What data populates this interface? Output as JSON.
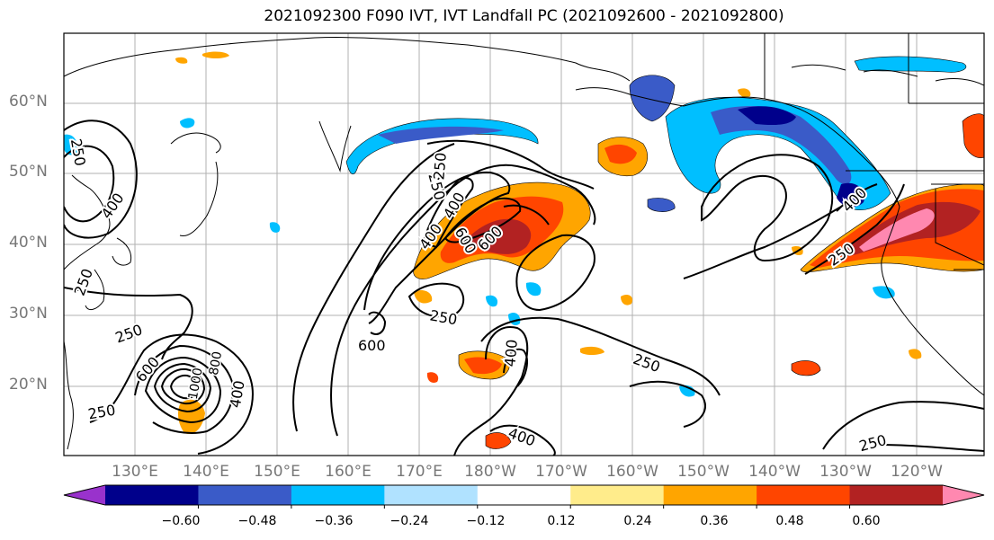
{
  "title": "2021092300 F090 IVT, IVT Landfall PC (2021092600 - 2021092800)",
  "lat_labels": [
    "60°N",
    "50°N",
    "40°N",
    "30°N",
    "20°N"
  ],
  "lon_labels": [
    "130°E",
    "140°E",
    "150°E",
    "160°E",
    "170°E",
    "180°W",
    "170°W",
    "160°W",
    "150°W",
    "140°W",
    "130°W",
    "120°W"
  ],
  "colorbar": {
    "tick_labels": [
      "−0.60",
      "−0.48",
      "−0.36",
      "−0.24",
      "−0.12",
      "0.12",
      "0.24",
      "0.36",
      "0.48",
      "0.60"
    ],
    "colors": [
      "#9932cc",
      "#00008b",
      "#3a5bc8",
      "#00bfff",
      "#b0e2ff",
      "#ffffff",
      "#ffec8b",
      "#ffa500",
      "#ff4500",
      "#b22222",
      "#ff88b0"
    ]
  },
  "contour_labels": [
    "250",
    "400",
    "250",
    "600",
    "400",
    "250",
    "600",
    "400",
    "250",
    "600",
    "400",
    "250",
    "250",
    "600",
    "400",
    "250",
    "250",
    "250",
    "400",
    "250",
    "400",
    "1000",
    "800"
  ]
}
